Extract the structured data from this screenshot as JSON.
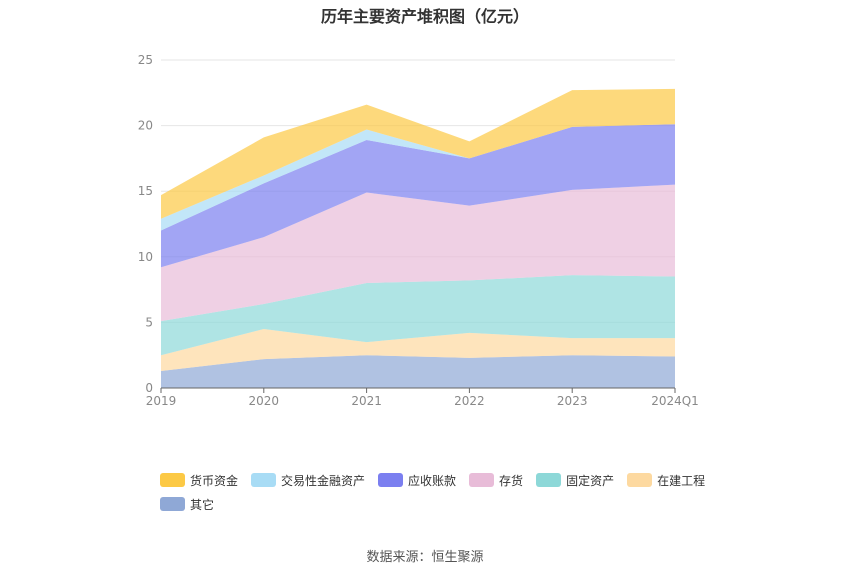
{
  "chart_data": {
    "type": "area",
    "stacked": true,
    "title": "历年主要资产堆积图（亿元）",
    "categories": [
      "2019",
      "2020",
      "2021",
      "2022",
      "2023",
      "2024Q1"
    ],
    "ylim": [
      0,
      25
    ],
    "yticks": [
      0,
      5,
      10,
      15,
      20,
      25
    ],
    "grid": true,
    "legend_position": "bottom",
    "series": [
      {
        "name": "其它",
        "color": "#8fa8d6",
        "values": [
          1.3,
          2.2,
          2.5,
          2.3,
          2.5,
          2.4
        ]
      },
      {
        "name": "在建工程",
        "color": "#fdd9a0",
        "values": [
          1.2,
          2.3,
          1.0,
          1.9,
          1.3,
          1.4
        ]
      },
      {
        "name": "固定资产",
        "color": "#8dd8d8",
        "values": [
          2.6,
          1.9,
          4.5,
          4.0,
          4.8,
          4.7
        ]
      },
      {
        "name": "存货",
        "color": "#e8bcd8",
        "values": [
          4.1,
          5.1,
          6.9,
          5.7,
          6.5,
          7.0
        ]
      },
      {
        "name": "应收账款",
        "color": "#7b7ff0",
        "values": [
          2.8,
          4.1,
          4.0,
          3.6,
          4.8,
          4.6
        ]
      },
      {
        "name": "交易性金融资产",
        "color": "#a8dcf5",
        "values": [
          0.9,
          0.6,
          0.8,
          0.0,
          0.0,
          0.0
        ]
      },
      {
        "name": "货币资金",
        "color": "#fcc945",
        "values": [
          1.8,
          2.9,
          1.9,
          1.3,
          2.8,
          2.7
        ]
      }
    ]
  },
  "legend_order": [
    "货币资金",
    "交易性金融资产",
    "应收账款",
    "存货",
    "固定资产",
    "在建工程",
    "其它"
  ],
  "source": "数据来源：恒生聚源"
}
